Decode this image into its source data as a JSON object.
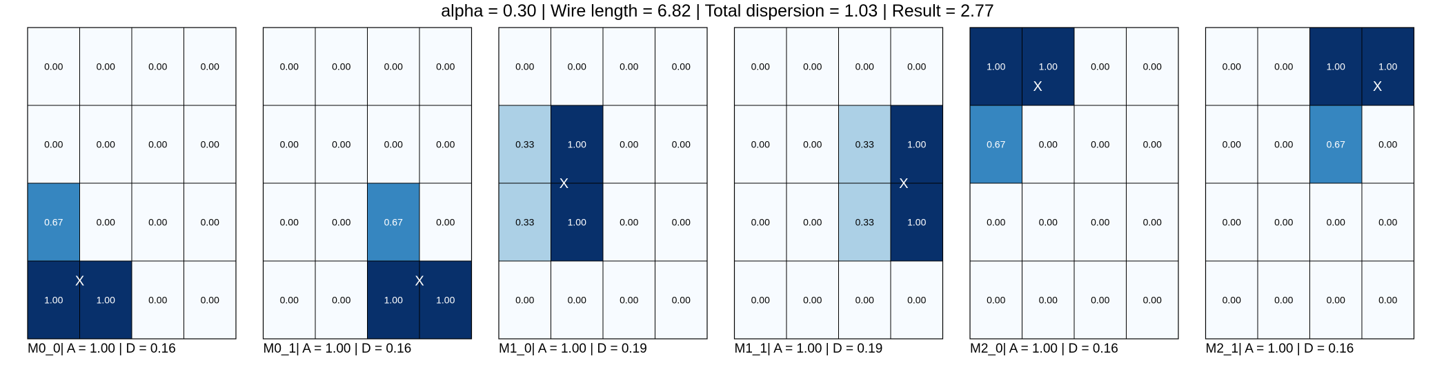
{
  "title": "alpha = 0.30 | Wire length = 6.82 | Total dispersion = 1.03 | Result = 2.77",
  "chart_data": {
    "type": "heatmap",
    "rows": 4,
    "cols": 4,
    "colormap": "Blues",
    "vmin": 0,
    "vmax": 1,
    "marker": "X",
    "panels": [
      {
        "caption": "M0_0| A = 1.00 | D = 0.16",
        "values": [
          [
            0,
            0,
            0,
            0
          ],
          [
            0,
            0,
            0,
            0
          ],
          [
            0.67,
            0,
            0,
            0
          ],
          [
            1,
            1,
            0,
            0
          ]
        ],
        "marker_pos": [
          3.25,
          1.0
        ]
      },
      {
        "caption": "M0_1| A = 1.00 | D = 0.16",
        "values": [
          [
            0,
            0,
            0,
            0
          ],
          [
            0,
            0,
            0,
            0
          ],
          [
            0,
            0,
            0.67,
            0
          ],
          [
            0,
            0,
            1,
            1
          ]
        ],
        "marker_pos": [
          3.25,
          3.0
        ]
      },
      {
        "caption": "M1_0| A = 1.00 | D = 0.19",
        "values": [
          [
            0,
            0,
            0,
            0
          ],
          [
            0.33,
            1,
            0,
            0
          ],
          [
            0.33,
            1,
            0,
            0
          ],
          [
            0,
            0,
            0,
            0
          ]
        ],
        "marker_pos": [
          2.0,
          1.25
        ]
      },
      {
        "caption": "M1_1| A = 1.00 | D = 0.19",
        "values": [
          [
            0,
            0,
            0,
            0
          ],
          [
            0,
            0,
            0.33,
            1
          ],
          [
            0,
            0,
            0.33,
            1
          ],
          [
            0,
            0,
            0,
            0
          ]
        ],
        "marker_pos": [
          2.0,
          3.25
        ]
      },
      {
        "caption": "M2_0| A = 1.00 | D = 0.16",
        "values": [
          [
            1,
            1,
            0,
            0
          ],
          [
            0.67,
            0,
            0,
            0
          ],
          [
            0,
            0,
            0,
            0
          ],
          [
            0,
            0,
            0,
            0
          ]
        ],
        "marker_pos": [
          0.75,
          1.3
        ]
      },
      {
        "caption": "M2_1| A = 1.00 | D = 0.16",
        "values": [
          [
            0,
            0,
            1,
            1
          ],
          [
            0,
            0,
            0.67,
            0
          ],
          [
            0,
            0,
            0,
            0
          ],
          [
            0,
            0,
            0,
            0
          ]
        ],
        "marker_pos": [
          0.75,
          3.3
        ]
      }
    ]
  }
}
